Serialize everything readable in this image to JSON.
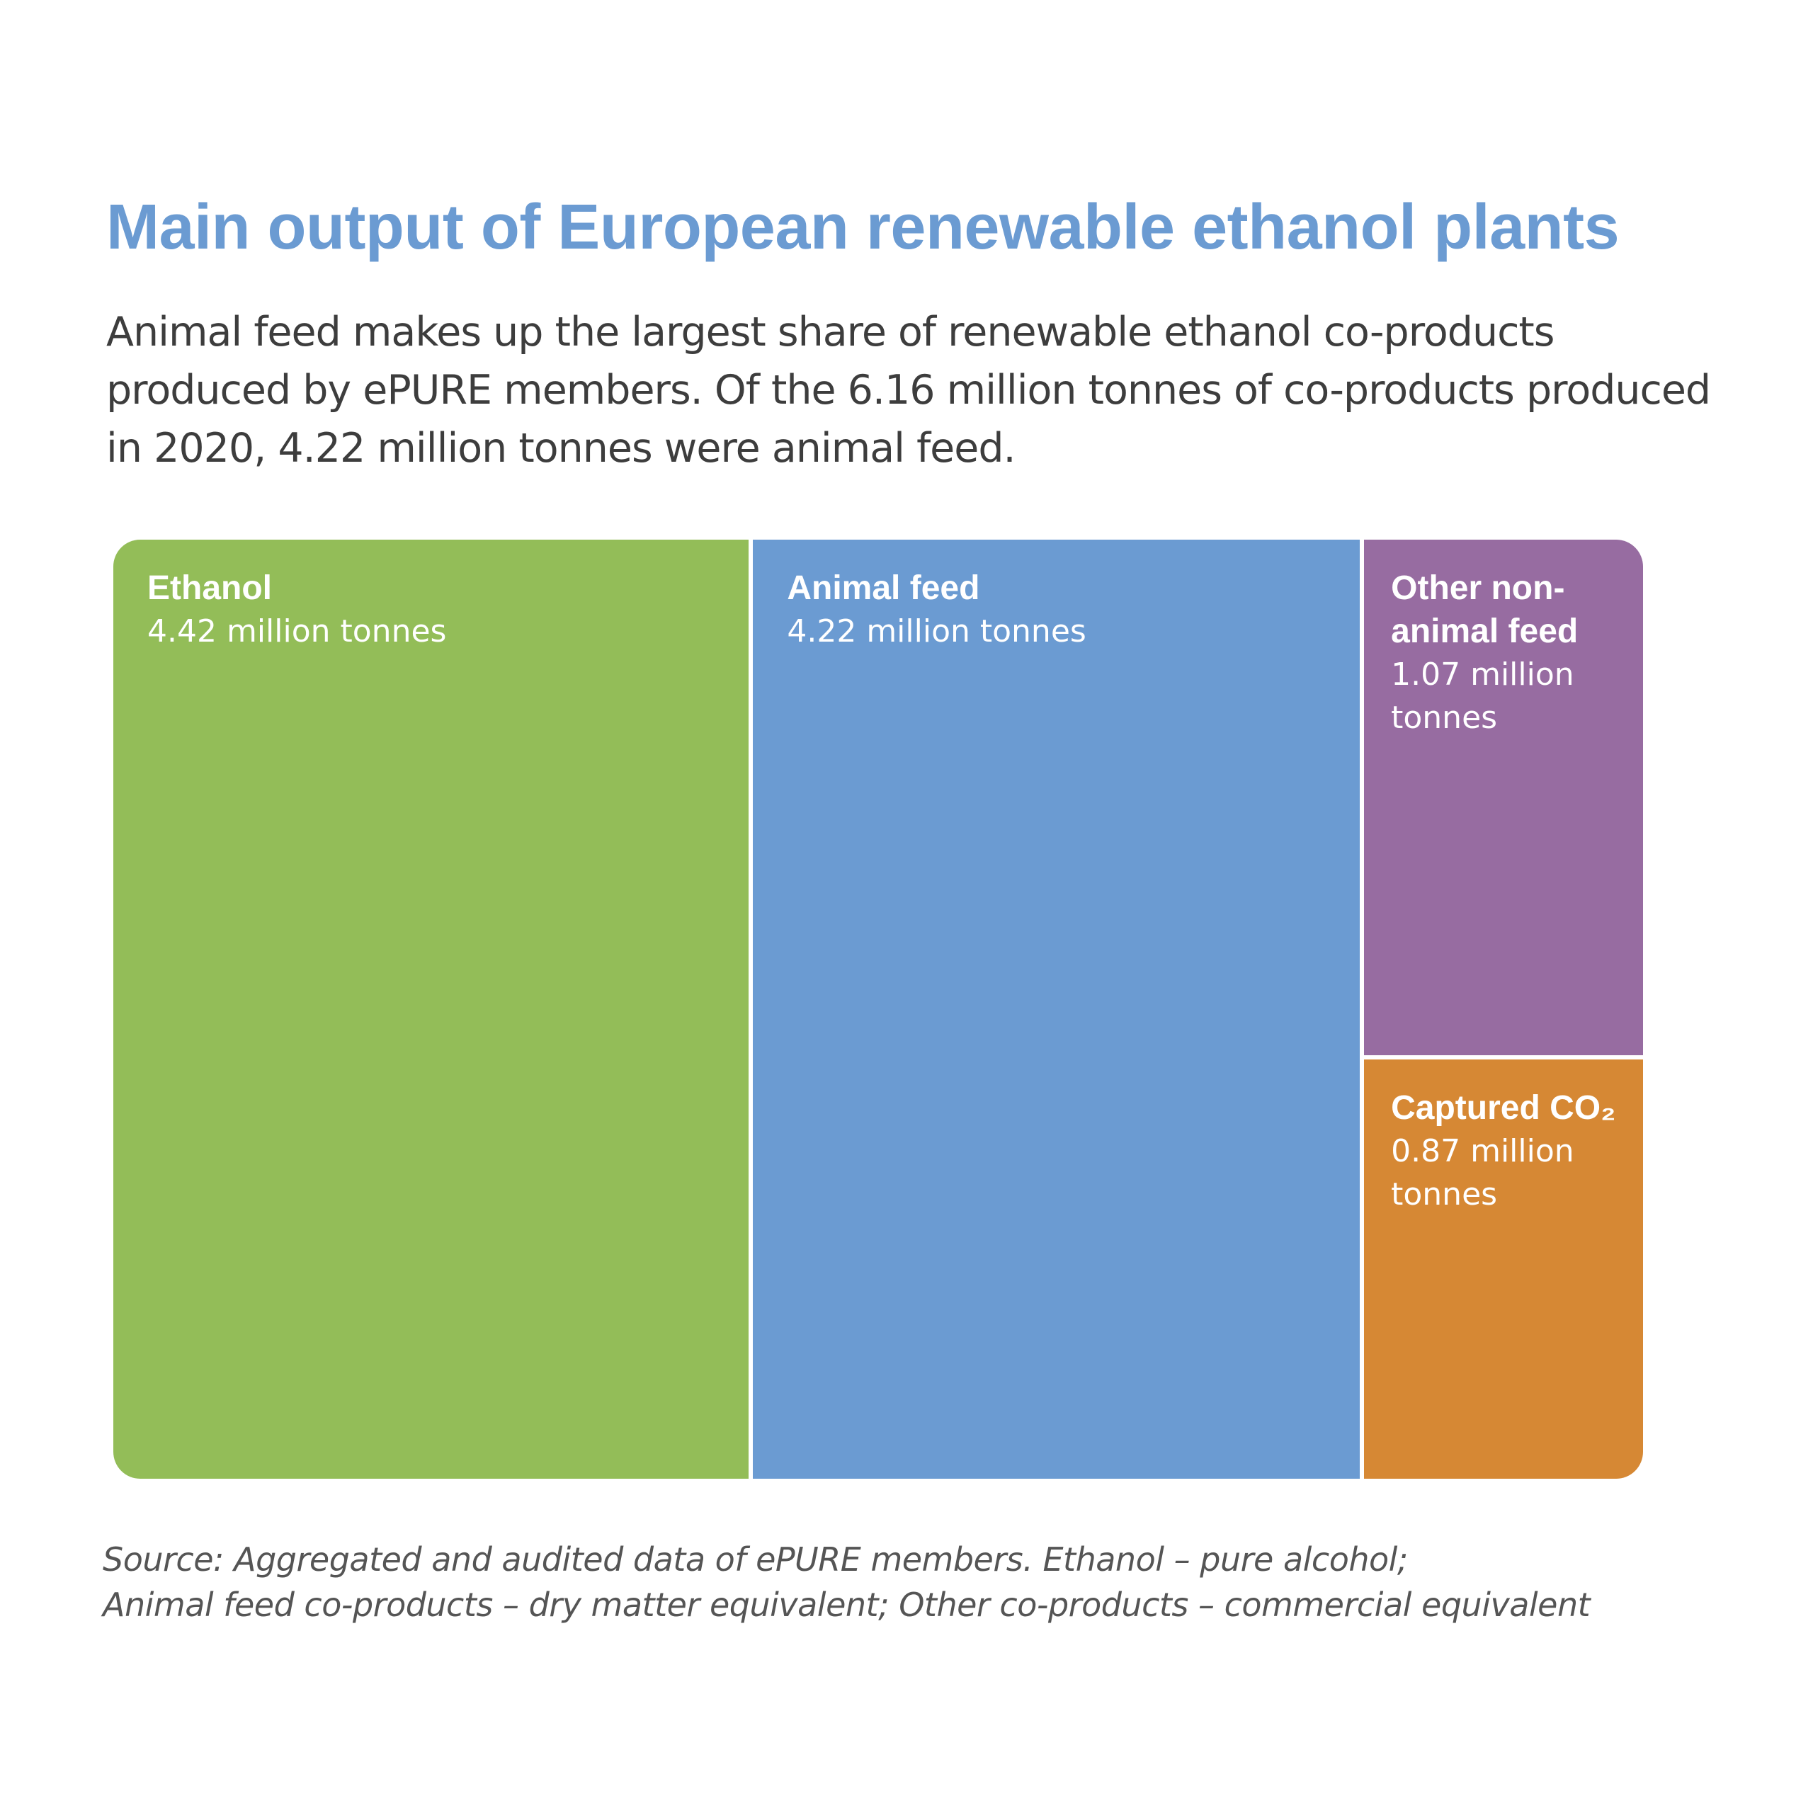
{
  "title": "Main output of European renewable ethanol plants",
  "subtitle": "Animal feed makes up the largest share of renewable ethanol co-products produced by ePURE members. Of the 6.16 million tonnes of co-products produced in 2020, 4.22 million tonnes were animal feed.",
  "source_lines": [
    "Source: Aggregated and audited data of ePURE members. Ethanol – pure alcohol;",
    "Animal feed co-products – dry matter equivalent; Other co-products – commercial equivalent"
  ],
  "chart_data": {
    "type": "treemap",
    "unit": "million tonnes",
    "items": [
      {
        "name": "Ethanol",
        "value": 4.42,
        "label": "4.42 million tonnes",
        "color": "#93bd58"
      },
      {
        "name": "Animal feed",
        "value": 4.22,
        "label": "4.22 million tonnes",
        "color": "#6b9bd2"
      },
      {
        "name": "Other non-animal feed",
        "value": 1.07,
        "label": "1.07 million tonnes",
        "color": "#976ca1"
      },
      {
        "name": "Captured CO₂",
        "value": 0.87,
        "label": "0.87 million tonnes",
        "color": "#d68834"
      }
    ]
  }
}
